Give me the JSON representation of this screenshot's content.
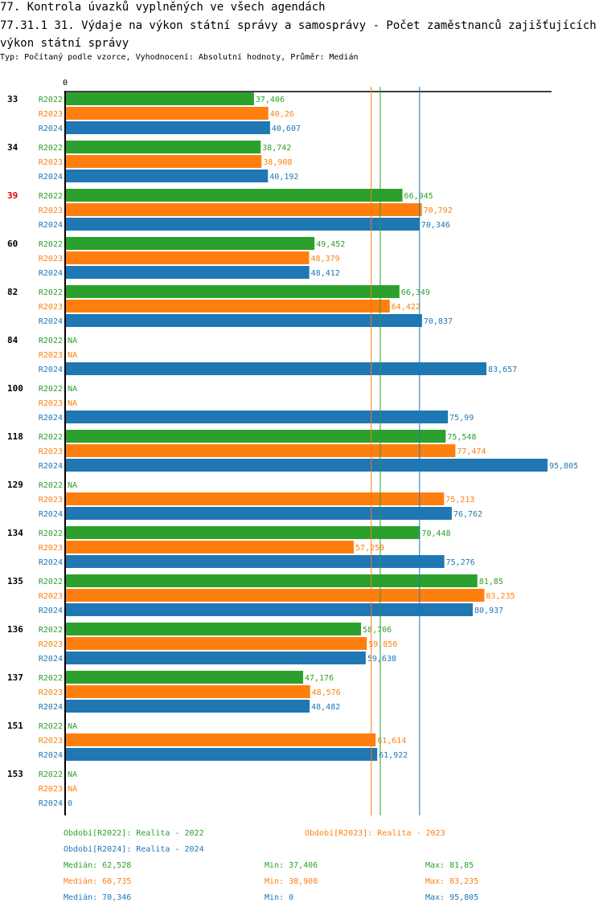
{
  "header": {
    "title_line1": "77. Kontrola úvazků vyplněných ve všech agendách",
    "title_line2": "77.31.1 31. Výdaje na výkon státní správy a samosprávy - Počet zaměstnanců zajišťujících výkon státní správy",
    "subtitle": "Typ: Počítaný podle vzorce, Vyhodnocení: Absolutní hodnoty, Průměr: Medián"
  },
  "colors": {
    "R2022": "#2ca02c",
    "R2023": "#ff7f0e",
    "R2024": "#1f77b4",
    "highlight_category": "#e00000",
    "axis": "#000000"
  },
  "chart_data": {
    "type": "bar",
    "orientation": "horizontal",
    "title": "77.31.1 31. Výdaje na výkon státní správy a samosprávy - Počet zaměstnanců zajišťujících výkon státní správy",
    "xlabel": "",
    "ylabel": "",
    "xlim": [
      0,
      95.805
    ],
    "x_tick_labels": [
      "0"
    ],
    "grid": false,
    "categories": [
      "33",
      "34",
      "39",
      "60",
      "82",
      "84",
      "100",
      "118",
      "129",
      "134",
      "135",
      "136",
      "137",
      "151",
      "153"
    ],
    "highlighted_category": "39",
    "series": [
      {
        "name": "R2022",
        "values": [
          37.406,
          38.742,
          66.945,
          49.452,
          66.349,
          null,
          null,
          75.548,
          null,
          70.448,
          81.85,
          58.706,
          47.176,
          null,
          null
        ],
        "labels": [
          "37,406",
          "38,742",
          "66,945",
          "49,452",
          "66,349",
          "NA",
          "NA",
          "75,548",
          "NA",
          "70,448",
          "81,85",
          "58,706",
          "47,176",
          "NA",
          "NA"
        ]
      },
      {
        "name": "R2023",
        "values": [
          40.26,
          38.908,
          70.792,
          48.379,
          64.422,
          null,
          null,
          77.474,
          75.213,
          57.259,
          83.235,
          59.856,
          48.576,
          61.614,
          null
        ],
        "labels": [
          "40,26",
          "38,908",
          "70,792",
          "48,379",
          "64,422",
          "NA",
          "NA",
          "77,474",
          "75,213",
          "57,259",
          "83,235",
          "59,856",
          "48,576",
          "61,614",
          "NA"
        ]
      },
      {
        "name": "R2024",
        "values": [
          40.607,
          40.192,
          70.346,
          48.412,
          70.837,
          83.657,
          75.99,
          95.805,
          76.762,
          75.276,
          80.937,
          59.638,
          48.482,
          61.922,
          0
        ],
        "labels": [
          "40,607",
          "40,192",
          "70,346",
          "48,412",
          "70,837",
          "83,657",
          "75,99",
          "95,805",
          "76,762",
          "75,276",
          "80,937",
          "59,638",
          "48,482",
          "61,922",
          "0"
        ]
      }
    ],
    "median_lines": [
      {
        "series": "R2022",
        "value": 62.528
      },
      {
        "series": "R2023",
        "value": 60.735
      },
      {
        "series": "R2024",
        "value": 70.346
      }
    ],
    "legend": {
      "placement": "bottom",
      "entries": [
        {
          "series": "R2022",
          "text": "Období[R2022]: Realita - 2022"
        },
        {
          "series": "R2023",
          "text": "Období[R2023]: Realita - 2023"
        },
        {
          "series": "R2024",
          "text": "Období[R2024]: Realita - 2024"
        }
      ]
    },
    "stats": [
      {
        "series": "R2022",
        "median": "Medián: 62,528",
        "min": "Min: 37,406",
        "max": "Max: 81,85"
      },
      {
        "series": "R2023",
        "median": "Medián: 60,735",
        "min": "Min: 38,908",
        "max": "Max: 83,235"
      },
      {
        "series": "R2024",
        "median": "Medián: 70,346",
        "min": "Min: 0",
        "max": "Max: 95,805"
      }
    ]
  }
}
